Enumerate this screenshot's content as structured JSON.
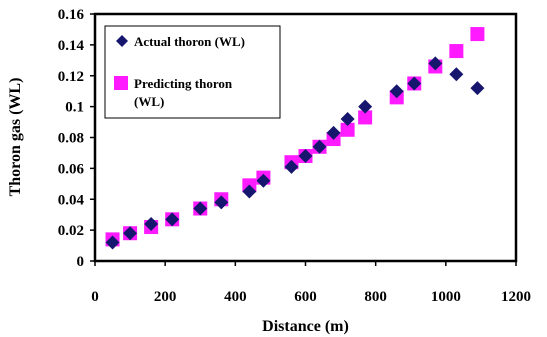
{
  "chart_data": {
    "type": "scatter",
    "xlabel": "Distance (m)",
    "ylabel": "Thoron gas (WL)",
    "xlim": [
      0,
      1200
    ],
    "ylim": [
      0,
      0.16
    ],
    "x_ticks": [
      "0",
      "200",
      "400",
      "600",
      "800",
      "1000",
      "1200"
    ],
    "y_ticks": [
      "0",
      "0.02",
      "0.04",
      "0.06",
      "0.08",
      "0.1",
      "0.12",
      "0.14",
      "0.16"
    ],
    "grid": false,
    "legend_position": "top-left",
    "series": [
      {
        "name": "Actual thoron (WL)",
        "marker": "diamond",
        "color": "#16166e",
        "points": [
          [
            50,
            0.012
          ],
          [
            100,
            0.018
          ],
          [
            160,
            0.024
          ],
          [
            220,
            0.027
          ],
          [
            300,
            0.034
          ],
          [
            360,
            0.038
          ],
          [
            440,
            0.045
          ],
          [
            480,
            0.052
          ],
          [
            560,
            0.061
          ],
          [
            600,
            0.068
          ],
          [
            640,
            0.074
          ],
          [
            680,
            0.083
          ],
          [
            720,
            0.092
          ],
          [
            770,
            0.1
          ],
          [
            860,
            0.11
          ],
          [
            910,
            0.115
          ],
          [
            970,
            0.128
          ],
          [
            1030,
            0.121
          ],
          [
            1090,
            0.112
          ]
        ]
      },
      {
        "name": "Predicting thoron (WL)",
        "marker": "square",
        "color": "#ff1aff",
        "points": [
          [
            50,
            0.014
          ],
          [
            100,
            0.018
          ],
          [
            160,
            0.022
          ],
          [
            220,
            0.027
          ],
          [
            300,
            0.034
          ],
          [
            360,
            0.04
          ],
          [
            440,
            0.049
          ],
          [
            480,
            0.054
          ],
          [
            560,
            0.064
          ],
          [
            600,
            0.068
          ],
          [
            640,
            0.074
          ],
          [
            680,
            0.079
          ],
          [
            720,
            0.085
          ],
          [
            770,
            0.093
          ],
          [
            860,
            0.106
          ],
          [
            910,
            0.115
          ],
          [
            970,
            0.126
          ],
          [
            1030,
            0.136
          ],
          [
            1090,
            0.147
          ]
        ]
      }
    ]
  }
}
